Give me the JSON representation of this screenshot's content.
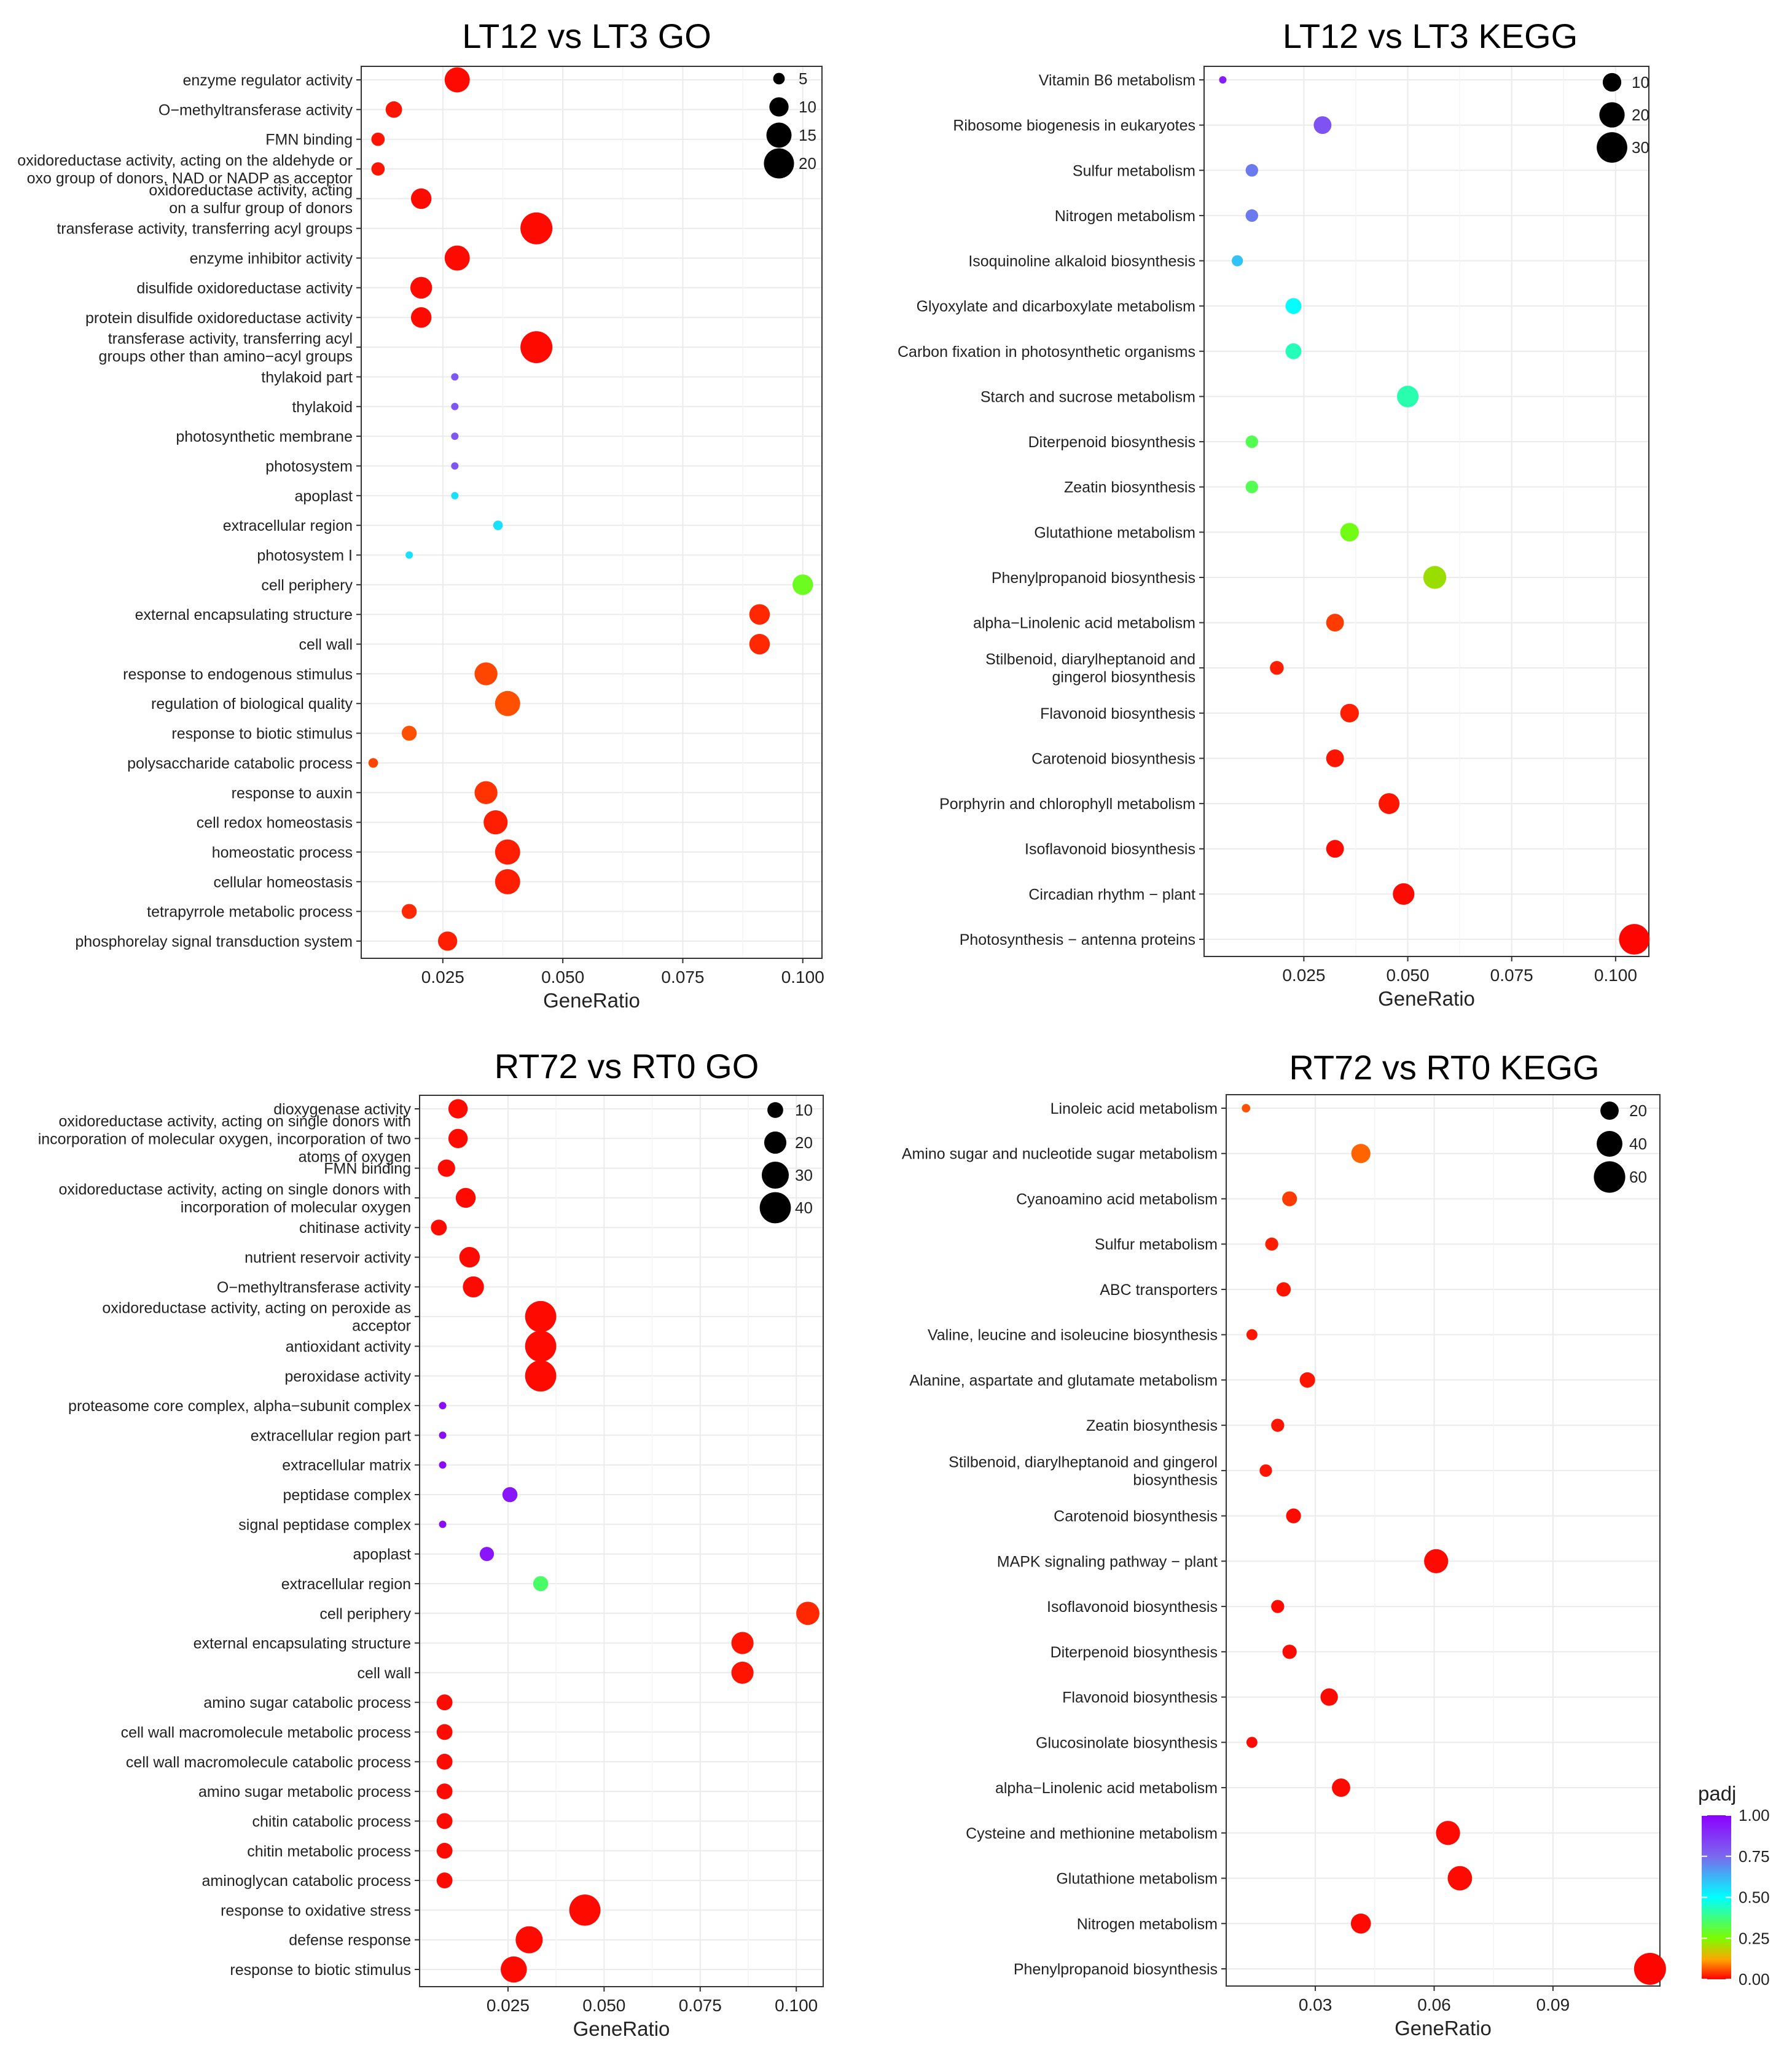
{
  "colorbar": {
    "title": "padj",
    "ticks": [
      1.0,
      0.75,
      0.5,
      0.25,
      0.0
    ],
    "tick_labels": [
      "1.00",
      "0.75",
      "0.50",
      "0.25",
      "0.00"
    ],
    "colors": [
      "#8b00ff",
      "#7b68ee",
      "#00ffff",
      "#7cfc00",
      "#ffa500",
      "#ff0000"
    ]
  },
  "chart_data": [
    {
      "type": "scatter",
      "title": "LT12 vs LT3 GO",
      "xlabel": "GeneRatio",
      "xlim": [
        0.008,
        0.104
      ],
      "xticks": [
        0.025,
        0.05,
        0.075,
        0.1
      ],
      "xtick_labels": [
        "0.025",
        "0.050",
        "0.075",
        "0.100"
      ],
      "size_legend": {
        "values": [
          5,
          10,
          15,
          20
        ],
        "labels": [
          "5",
          "10",
          "15",
          "20"
        ]
      },
      "size_range": [
        3,
        22
      ],
      "grid": true,
      "points": [
        {
          "term": [
            "enzyme regulator activity"
          ],
          "x": 0.028,
          "count": 15,
          "padj": 0.01
        },
        {
          "term": [
            "O−methyltransferase activity"
          ],
          "x": 0.0148,
          "count": 8,
          "padj": 0.02
        },
        {
          "term": [
            "FMN binding"
          ],
          "x": 0.0115,
          "count": 6,
          "padj": 0.02
        },
        {
          "term": [
            "oxidoreductase activity, acting on the aldehyde or",
            "oxo group of donors, NAD or NADP as acceptor"
          ],
          "x": 0.0115,
          "count": 6,
          "padj": 0.02
        },
        {
          "term": [
            "oxidoreductase activity, acting",
            "on a sulfur group of donors"
          ],
          "x": 0.0205,
          "count": 11,
          "padj": 0.01
        },
        {
          "term": [
            "transferase activity, transferring acyl groups"
          ],
          "x": 0.0445,
          "count": 22,
          "padj": 0.01
        },
        {
          "term": [
            "enzyme inhibitor activity"
          ],
          "x": 0.028,
          "count": 15,
          "padj": 0.01
        },
        {
          "term": [
            "disulfide oxidoreductase activity"
          ],
          "x": 0.0205,
          "count": 12,
          "padj": 0.01
        },
        {
          "term": [
            "protein disulfide oxidoreductase activity"
          ],
          "x": 0.0205,
          "count": 11,
          "padj": 0.01
        },
        {
          "term": [
            "transferase activity, transferring acyl",
            "groups other than amino−acyl groups"
          ],
          "x": 0.0445,
          "count": 22,
          "padj": 0.01
        },
        {
          "term": [
            "thylakoid part"
          ],
          "x": 0.0275,
          "count": 3,
          "padj": 0.79
        },
        {
          "term": [
            "thylakoid"
          ],
          "x": 0.0275,
          "count": 3,
          "padj": 0.79
        },
        {
          "term": [
            "photosynthetic membrane"
          ],
          "x": 0.0275,
          "count": 3,
          "padj": 0.79
        },
        {
          "term": [
            "photosystem"
          ],
          "x": 0.0275,
          "count": 3,
          "padj": 0.79
        },
        {
          "term": [
            "apoplast"
          ],
          "x": 0.0275,
          "count": 3,
          "padj": 0.55
        },
        {
          "term": [
            "extracellular region"
          ],
          "x": 0.0365,
          "count": 4,
          "padj": 0.55
        },
        {
          "term": [
            "photosystem I"
          ],
          "x": 0.018,
          "count": 1,
          "padj": 0.55
        },
        {
          "term": [
            "cell periphery"
          ],
          "x": 0.1,
          "count": 11,
          "padj": 0.28
        },
        {
          "term": [
            "external encapsulating structure"
          ],
          "x": 0.091,
          "count": 11,
          "padj": 0.04
        },
        {
          "term": [
            "cell wall"
          ],
          "x": 0.091,
          "count": 11,
          "padj": 0.04
        },
        {
          "term": [
            "response to endogenous stimulus"
          ],
          "x": 0.034,
          "count": 13,
          "padj": 0.07
        },
        {
          "term": [
            "regulation of biological quality"
          ],
          "x": 0.0385,
          "count": 15,
          "padj": 0.08
        },
        {
          "term": [
            "response to biotic stimulus"
          ],
          "x": 0.018,
          "count": 7,
          "padj": 0.08
        },
        {
          "term": [
            "polysaccharide catabolic process"
          ],
          "x": 0.0105,
          "count": 4,
          "padj": 0.07
        },
        {
          "term": [
            "response to auxin"
          ],
          "x": 0.034,
          "count": 13,
          "padj": 0.05
        },
        {
          "term": [
            "cell redox homeostasis"
          ],
          "x": 0.036,
          "count": 14,
          "padj": 0.03
        },
        {
          "term": [
            "homeostatic process"
          ],
          "x": 0.0385,
          "count": 15,
          "padj": 0.03
        },
        {
          "term": [
            "cellular homeostasis"
          ],
          "x": 0.0385,
          "count": 15,
          "padj": 0.03
        },
        {
          "term": [
            "tetrapyrrole metabolic process"
          ],
          "x": 0.018,
          "count": 7,
          "padj": 0.04
        },
        {
          "term": [
            "phosphorelay signal transduction system"
          ],
          "x": 0.026,
          "count": 10,
          "padj": 0.03
        }
      ]
    },
    {
      "type": "scatter",
      "title": "LT12 vs LT3 KEGG",
      "xlabel": "GeneRatio",
      "xlim": [
        0.001,
        0.108
      ],
      "xticks": [
        0.025,
        0.05,
        0.075,
        0.1
      ],
      "xtick_labels": [
        "0.025",
        "0.050",
        "0.075",
        "0.100"
      ],
      "size_legend": {
        "values": [
          10,
          20,
          30
        ],
        "labels": [
          "10",
          "20",
          "30"
        ]
      },
      "size_range": [
        1,
        33
      ],
      "grid": true,
      "points": [
        {
          "term": [
            "Vitamin B6 metabolism"
          ],
          "x": 0.0055,
          "count": 1,
          "padj": 0.93
        },
        {
          "term": [
            "Ribosome biogenesis in eukaryotes"
          ],
          "x": 0.0295,
          "count": 9,
          "padj": 0.8
        },
        {
          "term": [
            "Sulfur metabolism"
          ],
          "x": 0.0125,
          "count": 4,
          "padj": 0.72
        },
        {
          "term": [
            "Nitrogen metabolism"
          ],
          "x": 0.0125,
          "count": 4,
          "padj": 0.72
        },
        {
          "term": [
            "Isoquinoline alkaloid biosynthesis"
          ],
          "x": 0.009,
          "count": 3,
          "padj": 0.6
        },
        {
          "term": [
            "Glyoxylate and dicarboxylate metabolism"
          ],
          "x": 0.0225,
          "count": 7,
          "padj": 0.5
        },
        {
          "term": [
            "Carbon fixation in photosynthetic organisms"
          ],
          "x": 0.0225,
          "count": 7,
          "padj": 0.43
        },
        {
          "term": [
            "Starch and sucrose metabolism"
          ],
          "x": 0.05,
          "count": 14,
          "padj": 0.42
        },
        {
          "term": [
            "Diterpenoid biosynthesis"
          ],
          "x": 0.0125,
          "count": 4,
          "padj": 0.33
        },
        {
          "term": [
            "Zeatin biosynthesis"
          ],
          "x": 0.0125,
          "count": 4,
          "padj": 0.33
        },
        {
          "term": [
            "Glutathione metabolism"
          ],
          "x": 0.036,
          "count": 10,
          "padj": 0.27
        },
        {
          "term": [
            "Phenylpropanoid biosynthesis"
          ],
          "x": 0.0565,
          "count": 16,
          "padj": 0.22
        },
        {
          "term": [
            "alpha−Linolenic acid metabolism"
          ],
          "x": 0.0325,
          "count": 9,
          "padj": 0.06
        },
        {
          "term": [
            "Stilbenoid, diarylheptanoid and",
            "gingerol biosynthesis"
          ],
          "x": 0.0185,
          "count": 5,
          "padj": 0.03
        },
        {
          "term": [
            "Flavonoid biosynthesis"
          ],
          "x": 0.036,
          "count": 10,
          "padj": 0.03
        },
        {
          "term": [
            "Carotenoid biosynthesis"
          ],
          "x": 0.0325,
          "count": 9,
          "padj": 0.02
        },
        {
          "term": [
            "Porphyrin and chlorophyll metabolism"
          ],
          "x": 0.0455,
          "count": 13,
          "padj": 0.02
        },
        {
          "term": [
            "Isoflavonoid biosynthesis"
          ],
          "x": 0.0325,
          "count": 9,
          "padj": 0.01
        },
        {
          "term": [
            "Circadian rhythm − plant"
          ],
          "x": 0.049,
          "count": 14,
          "padj": 0.01
        },
        {
          "term": [
            "Photosynthesis − antenna proteins"
          ],
          "x": 0.1045,
          "count": 30,
          "padj": 0.005
        }
      ]
    },
    {
      "type": "scatter",
      "title": "RT72 vs RT0 GO",
      "xlabel": "GeneRatio",
      "xlim": [
        0.002,
        0.107
      ],
      "xticks": [
        0.025,
        0.05,
        0.075,
        0.1
      ],
      "xtick_labels": [
        "0.025",
        "0.050",
        "0.075",
        "0.100"
      ],
      "size_legend": {
        "values": [
          10,
          20,
          30,
          40
        ],
        "labels": [
          "10",
          "20",
          "30",
          "40"
        ]
      },
      "size_range": [
        2,
        42
      ],
      "grid": true,
      "points": [
        {
          "term": [
            "dioxygenase activity"
          ],
          "x": 0.012,
          "count": 15,
          "padj": 0.01
        },
        {
          "term": [
            "oxidoreductase activity, acting on single donors with",
            "incorporation of molecular oxygen, incorporation of two",
            "atoms of oxygen"
          ],
          "x": 0.012,
          "count": 15,
          "padj": 0.01
        },
        {
          "term": [
            "FMN binding"
          ],
          "x": 0.009,
          "count": 12,
          "padj": 0.01
        },
        {
          "term": [
            "oxidoreductase activity, acting on single donors with",
            "incorporation of molecular oxygen"
          ],
          "x": 0.014,
          "count": 16,
          "padj": 0.01
        },
        {
          "term": [
            "chitinase activity"
          ],
          "x": 0.007,
          "count": 10,
          "padj": 0.01
        },
        {
          "term": [
            "nutrient reservoir activity"
          ],
          "x": 0.015,
          "count": 17,
          "padj": 0.01
        },
        {
          "term": [
            "O−methyltransferase activity"
          ],
          "x": 0.016,
          "count": 18,
          "padj": 0.01
        },
        {
          "term": [
            "oxidoreductase activity, acting on peroxide as",
            "acceptor"
          ],
          "x": 0.0335,
          "count": 40,
          "padj": 0.01
        },
        {
          "term": [
            "antioxidant activity"
          ],
          "x": 0.0335,
          "count": 40,
          "padj": 0.01
        },
        {
          "term": [
            "peroxidase activity"
          ],
          "x": 0.0335,
          "count": 40,
          "padj": 0.01
        },
        {
          "term": [
            "proteasome core complex, alpha−subunit complex"
          ],
          "x": 0.008,
          "count": 2,
          "padj": 0.97
        },
        {
          "term": [
            "extracellular region part"
          ],
          "x": 0.008,
          "count": 2,
          "padj": 0.97
        },
        {
          "term": [
            "extracellular matrix"
          ],
          "x": 0.008,
          "count": 2,
          "padj": 0.97
        },
        {
          "term": [
            "peptidase complex"
          ],
          "x": 0.0255,
          "count": 9,
          "padj": 0.95
        },
        {
          "term": [
            "signal peptidase complex"
          ],
          "x": 0.008,
          "count": 2,
          "padj": 0.97
        },
        {
          "term": [
            "apoplast"
          ],
          "x": 0.0195,
          "count": 8,
          "padj": 0.95
        },
        {
          "term": [
            "extracellular region"
          ],
          "x": 0.0335,
          "count": 9,
          "padj": 0.35
        },
        {
          "term": [
            "cell periphery"
          ],
          "x": 0.103,
          "count": 22,
          "padj": 0.04
        },
        {
          "term": [
            "external encapsulating structure"
          ],
          "x": 0.086,
          "count": 20,
          "padj": 0.02
        },
        {
          "term": [
            "cell wall"
          ],
          "x": 0.086,
          "count": 20,
          "padj": 0.02
        },
        {
          "term": [
            "amino sugar catabolic process"
          ],
          "x": 0.0085,
          "count": 10,
          "padj": 0.01
        },
        {
          "term": [
            "cell wall macromolecule metabolic process"
          ],
          "x": 0.0085,
          "count": 10,
          "padj": 0.01
        },
        {
          "term": [
            "cell wall macromolecule catabolic process"
          ],
          "x": 0.0085,
          "count": 10,
          "padj": 0.01
        },
        {
          "term": [
            "amino sugar metabolic process"
          ],
          "x": 0.0085,
          "count": 10,
          "padj": 0.01
        },
        {
          "term": [
            "chitin catabolic process"
          ],
          "x": 0.0085,
          "count": 10,
          "padj": 0.01
        },
        {
          "term": [
            "chitin metabolic process"
          ],
          "x": 0.0085,
          "count": 10,
          "padj": 0.01
        },
        {
          "term": [
            "aminoglycan catabolic process"
          ],
          "x": 0.0085,
          "count": 10,
          "padj": 0.01
        },
        {
          "term": [
            "response to oxidative stress"
          ],
          "x": 0.045,
          "count": 40,
          "padj": 0.01
        },
        {
          "term": [
            "defense response"
          ],
          "x": 0.0305,
          "count": 30,
          "padj": 0.01
        },
        {
          "term": [
            "response to biotic stimulus"
          ],
          "x": 0.0265,
          "count": 28,
          "padj": 0.01
        }
      ]
    },
    {
      "type": "scatter",
      "title": "RT72 vs RT0 KEGG",
      "xlabel": "GeneRatio",
      "xlim": [
        0.0075,
        0.117
      ],
      "xticks": [
        0.03,
        0.06,
        0.09
      ],
      "xtick_labels": [
        "0.03",
        "0.06",
        "0.09"
      ],
      "size_legend": {
        "values": [
          20,
          40,
          60
        ],
        "labels": [
          "20",
          "40",
          "60"
        ]
      },
      "size_range": [
        3,
        62
      ],
      "grid": true,
      "points": [
        {
          "term": [
            "Linoleic acid metabolism"
          ],
          "x": 0.0125,
          "count": 4,
          "padj": 0.08
        },
        {
          "term": [
            "Amino sugar and nucleotide sugar metabolism"
          ],
          "x": 0.0415,
          "count": 22,
          "padj": 0.1
        },
        {
          "term": [
            "Cyanoamino acid metabolism"
          ],
          "x": 0.0235,
          "count": 13,
          "padj": 0.06
        },
        {
          "term": [
            "Sulfur metabolism"
          ],
          "x": 0.019,
          "count": 10,
          "padj": 0.03
        },
        {
          "term": [
            "ABC transporters"
          ],
          "x": 0.022,
          "count": 12,
          "padj": 0.02
        },
        {
          "term": [
            "Valine, leucine and isoleucine biosynthesis"
          ],
          "x": 0.014,
          "count": 7,
          "padj": 0.02
        },
        {
          "term": [
            "Alanine, aspartate and glutamate metabolism"
          ],
          "x": 0.028,
          "count": 14,
          "padj": 0.02
        },
        {
          "term": [
            "Zeatin biosynthesis"
          ],
          "x": 0.0205,
          "count": 10,
          "padj": 0.02
        },
        {
          "term": [
            "Stilbenoid, diarylheptanoid and gingerol",
            "biosynthesis"
          ],
          "x": 0.0175,
          "count": 9,
          "padj": 0.02
        },
        {
          "term": [
            "Carotenoid biosynthesis"
          ],
          "x": 0.0245,
          "count": 13,
          "padj": 0.01
        },
        {
          "term": [
            "MAPK signaling pathway − plant"
          ],
          "x": 0.0605,
          "count": 35,
          "padj": 0.01
        },
        {
          "term": [
            "Isoflavonoid biosynthesis"
          ],
          "x": 0.0205,
          "count": 10,
          "padj": 0.01
        },
        {
          "term": [
            "Diterpenoid biosynthesis"
          ],
          "x": 0.0235,
          "count": 12,
          "padj": 0.01
        },
        {
          "term": [
            "Flavonoid biosynthesis"
          ],
          "x": 0.0335,
          "count": 18,
          "padj": 0.01
        },
        {
          "term": [
            "Glucosinolate biosynthesis"
          ],
          "x": 0.014,
          "count": 7,
          "padj": 0.01
        },
        {
          "term": [
            "alpha−Linolenic acid metabolism"
          ],
          "x": 0.0365,
          "count": 20,
          "padj": 0.01
        },
        {
          "term": [
            "Cysteine and methionine metabolism"
          ],
          "x": 0.0635,
          "count": 35,
          "padj": 0.01
        },
        {
          "term": [
            "Glutathione metabolism"
          ],
          "x": 0.0665,
          "count": 36,
          "padj": 0.01
        },
        {
          "term": [
            "Nitrogen metabolism"
          ],
          "x": 0.0415,
          "count": 24,
          "padj": 0.01
        },
        {
          "term": [
            "Phenylpropanoid biosynthesis"
          ],
          "x": 0.1145,
          "count": 62,
          "padj": 0.005
        }
      ]
    }
  ]
}
